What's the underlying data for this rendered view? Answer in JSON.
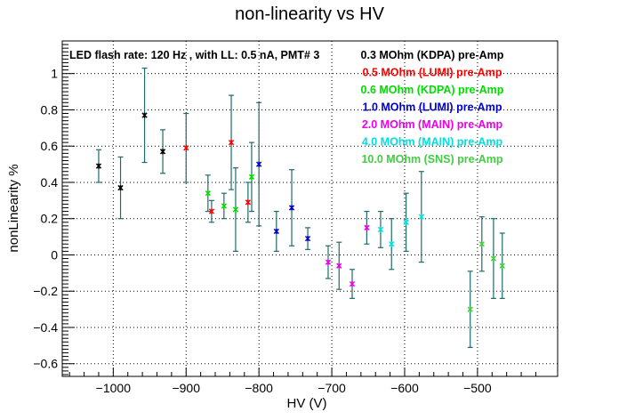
{
  "chart_data": {
    "type": "scatter",
    "title": "non-linearity vs HV",
    "xlabel": "HV (V)",
    "ylabel": "nonLinearity %",
    "xlim": [
      -1070,
      -390
    ],
    "ylim": [
      -0.67,
      1.18
    ],
    "x_ticks": [
      -1000,
      -900,
      -800,
      -700,
      -600,
      -500
    ],
    "x_tick_labels": [
      "−1000",
      "−900",
      "−800",
      "−700",
      "−600",
      "−500"
    ],
    "y_ticks": [
      -0.6,
      -0.4,
      -0.2,
      0,
      0.2,
      0.4,
      0.6,
      0.8,
      1
    ],
    "y_tick_labels": [
      "−0.6",
      "−0.4",
      "−0.2",
      "0",
      "0.2",
      "0.4",
      "0.6",
      "0.8",
      "1"
    ],
    "grid": true,
    "annotation": "LED flash rate: 120 Hz , with LL: 0.5 nA, PMT# 3",
    "legend_position": "top-right",
    "error_bar_color": "#1f6b6b",
    "series": [
      {
        "name": "0.3 MOhm (KDPA) pre-Amp",
        "color": "#000000",
        "x": [
          -1020,
          -990,
          -957,
          -932
        ],
        "y": [
          0.49,
          0.37,
          0.77,
          0.57
        ],
        "err": [
          0.09,
          0.17,
          0.26,
          0.12
        ]
      },
      {
        "name": "0.5 MOhm (LUMI) pre-Amp",
        "color": "#ff0000",
        "x": [
          -900,
          -865,
          -838,
          -815
        ],
        "y": [
          0.59,
          0.24,
          0.62,
          0.29
        ],
        "err": [
          0.19,
          0.06,
          0.26,
          0.11
        ]
      },
      {
        "name": "0.6 MOhm (KDPA) pre-Amp",
        "color": "#00dd00",
        "x": [
          -870,
          -848,
          -832,
          -810
        ],
        "y": [
          0.34,
          0.27,
          0.25,
          0.43
        ],
        "err": [
          0.1,
          0.07,
          0.23,
          0.19
        ]
      },
      {
        "name": "1.0 MOhm (LUMI) pre-Amp",
        "color": "#0000cc",
        "x": [
          -800,
          -776,
          -755,
          -733
        ],
        "y": [
          0.5,
          0.13,
          0.26,
          0.09
        ],
        "err": [
          0.34,
          0.11,
          0.21,
          0.06
        ]
      },
      {
        "name": "2.0 MOhm (MAIN) pre-Amp",
        "color": "#ee00ee",
        "x": [
          -705,
          -690,
          -672,
          -652
        ],
        "y": [
          -0.04,
          -0.06,
          -0.16,
          0.15
        ],
        "err": [
          0.09,
          0.13,
          0.08,
          0.09
        ]
      },
      {
        "name": "4.0 MOhm (MAIN) pre-Amp",
        "color": "#00e0e0",
        "x": [
          -633,
          -618,
          -598,
          -577
        ],
        "y": [
          0.14,
          0.06,
          0.18,
          0.21
        ],
        "err": [
          0.1,
          0.14,
          0.16,
          0.25
        ]
      },
      {
        "name": "10.0 MOhm (SNS) pre-Amp",
        "color": "#44cc44",
        "x": [
          -510,
          -494,
          -478,
          -466
        ],
        "y": [
          -0.3,
          0.06,
          -0.02,
          -0.06
        ],
        "err": [
          0.21,
          0.15,
          0.22,
          0.18
        ]
      }
    ]
  }
}
